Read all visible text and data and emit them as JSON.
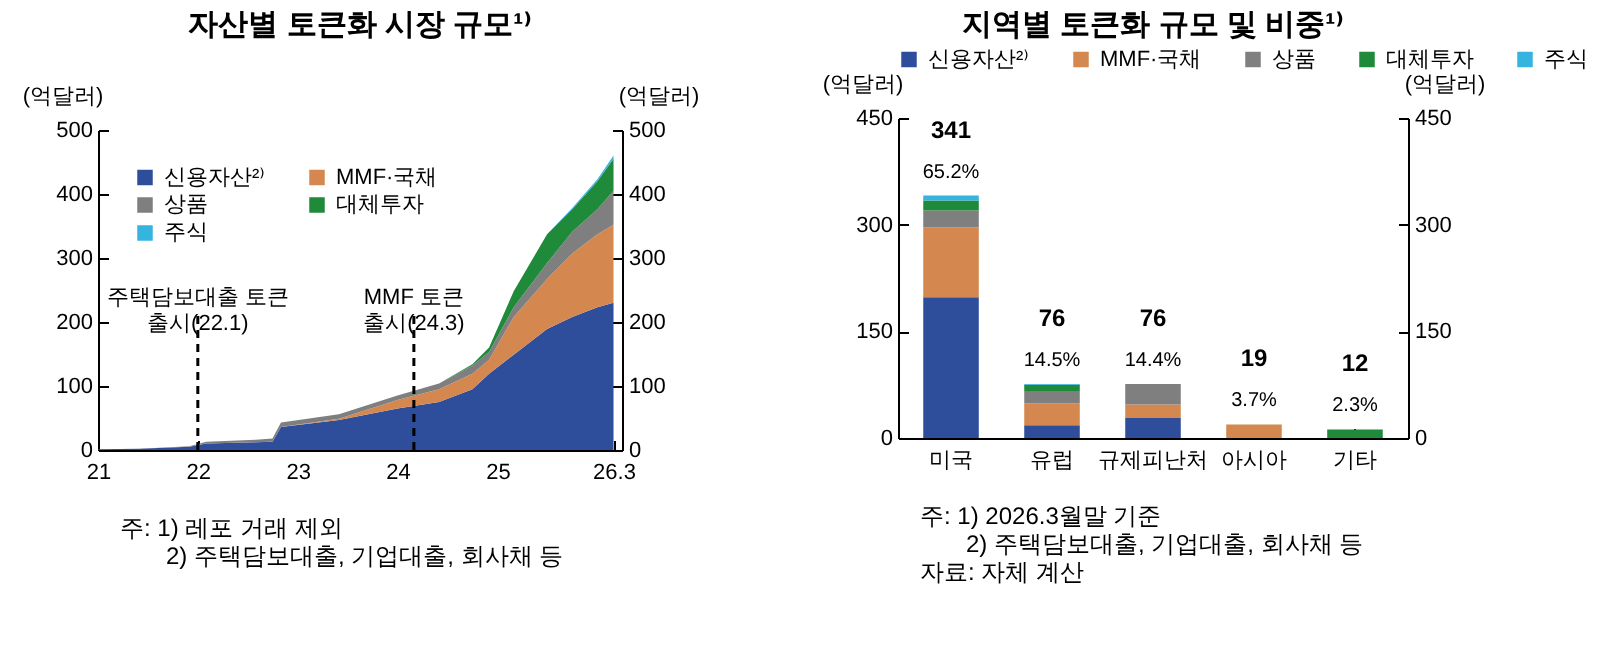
{
  "chart_data": [
    {
      "type": "area",
      "title": "자산별 토큰화 시장 규모¹⁾",
      "ylabel": "(억달러)",
      "y2label": "(억달러)",
      "stacked": true,
      "legend": "top left",
      "x": [
        "2021-01",
        "2021-06",
        "2021-12",
        "2022-02",
        "2022-08",
        "2022-10",
        "2022-11",
        "2023-06",
        "2024-01",
        "2024-06",
        "2024-10",
        "2024-12",
        "2025-03",
        "2025-07",
        "2025-10",
        "2026-01",
        "2026-03"
      ],
      "series": [
        {
          "name": "신용자산²⁾",
          "color": "#2e4d9a",
          "values": [
            1,
            2,
            5,
            10,
            12,
            13,
            36,
            47,
            65,
            75,
            95,
            119,
            149,
            189,
            208,
            223,
            230
          ]
        },
        {
          "name": "MMF·국채",
          "color": "#d4874e",
          "values": [
            0,
            0,
            0,
            0,
            0,
            0,
            0,
            2,
            13,
            20,
            24,
            22,
            59,
            78,
            99,
            114,
            122
          ]
        },
        {
          "name": "상품",
          "color": "#7f7f7f",
          "values": [
            0,
            0,
            1,
            3,
            4,
            5,
            7,
            7,
            7,
            9,
            13,
            12,
            15,
            25,
            34,
            39,
            53
          ]
        },
        {
          "name": "대체투자",
          "color": "#1e8a3a",
          "values": [
            0,
            0,
            0,
            0,
            0,
            0,
            0,
            0,
            0,
            0,
            2,
            7,
            25,
            45,
            35,
            44,
            50
          ]
        },
        {
          "name": "주식",
          "color": "#35b4e0",
          "values": [
            0,
            0,
            0,
            0,
            0,
            0,
            0,
            0,
            0,
            0,
            0,
            0,
            0,
            0,
            2,
            3,
            5
          ]
        }
      ],
      "xlim": [
        "2021-01",
        "2026-04"
      ],
      "xticks": [
        {
          "value": "2021-01",
          "label": "21"
        },
        {
          "value": "2022-01",
          "label": "22"
        },
        {
          "value": "2023-01",
          "label": "23"
        },
        {
          "value": "2024-01",
          "label": "24"
        },
        {
          "value": "2025-01",
          "label": "25"
        },
        {
          "value": "2026-03",
          "label": "26.3"
        }
      ],
      "ylim": [
        0,
        500
      ],
      "yticks": [
        0,
        100,
        200,
        300,
        400,
        500
      ],
      "y2lim": [
        0,
        500
      ],
      "y2ticks": [
        0,
        100,
        200,
        300,
        400,
        500
      ],
      "ref_lines": [
        {
          "axis": "x",
          "value": "2022-01",
          "label": "주택담보대출 토큰 출시(22.1)",
          "line_style": "dashed"
        },
        {
          "axis": "x",
          "value": "2024-03",
          "label": "MMF 토큰 출시(24.3)",
          "line_style": "dashed"
        }
      ],
      "annotations": [
        "주: 1) 레포 거래 제외",
        "2) 주택담보대출, 기업대출, 회사채 등"
      ]
    },
    {
      "type": "bar",
      "title": "지역별 토큰화 규모 및 비중¹⁾",
      "ylabel": "(억달러)",
      "y2label": "(억달러)",
      "stacked": true,
      "legend": "top",
      "categories": [
        "미국",
        "유럽",
        "규제피난처",
        "아시아",
        "기타"
      ],
      "series": [
        {
          "name": "신용자산²⁾",
          "color": "#2e4d9a",
          "values": [
            198,
            18,
            28,
            0,
            0
          ]
        },
        {
          "name": "MMF·국채",
          "color": "#d4874e",
          "values": [
            98,
            31,
            19,
            19,
            0
          ]
        },
        {
          "name": "상품",
          "color": "#7f7f7f",
          "values": [
            24,
            17,
            29,
            0,
            0
          ]
        },
        {
          "name": "대체투자",
          "color": "#1e8a3a",
          "values": [
            14,
            9,
            0,
            0,
            12
          ]
        },
        {
          "name": "주식",
          "color": "#35b4e0",
          "values": [
            7,
            1,
            0,
            0,
            0
          ]
        }
      ],
      "ylim": [
        0,
        450
      ],
      "yticks": [
        0,
        150,
        300,
        450
      ],
      "y2lim": [
        0,
        450
      ],
      "y2ticks": [
        0,
        150,
        300,
        450
      ],
      "totals": [
        "341",
        "76",
        "76",
        "19",
        "12"
      ],
      "annotations": [
        {
          "text": "65.2%",
          "x": "미국",
          "y": 341
        },
        {
          "text": "14.5%",
          "x": "유럽",
          "y": 76
        },
        {
          "text": "14.4%",
          "x": "규제피난처",
          "y": 76
        },
        {
          "text": "3.7%",
          "x": "아시아",
          "y": 19
        },
        {
          "text": "2.3%",
          "x": "기타",
          "y": 12
        },
        "주: 1) 2026.3월말 기준",
        "2) 주택담보대출, 기업대출, 회사채 등",
        "자료: 자체 계산"
      ]
    }
  ]
}
